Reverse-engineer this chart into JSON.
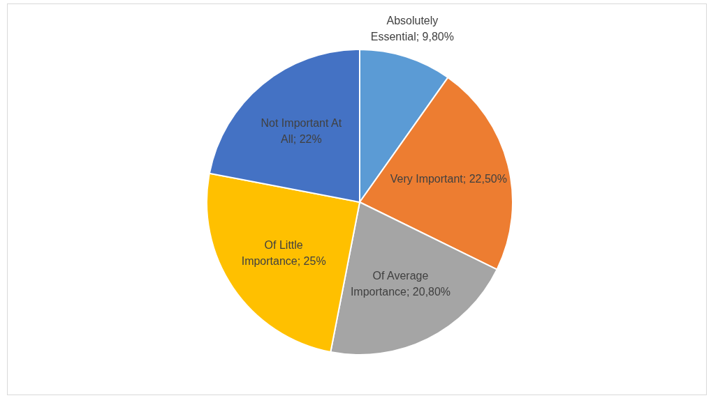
{
  "chart_data": {
    "type": "pie",
    "categories": [
      "Absolutely Essential",
      "Very Important",
      "Of Average Importance",
      "Of Little Importance",
      "Not Important At All"
    ],
    "values": [
      9.8,
      22.5,
      20.8,
      25,
      22
    ],
    "colors": [
      "#5b9bd5",
      "#ed7d31",
      "#a5a5a5",
      "#ffc000",
      "#4472c4"
    ],
    "value_labels": [
      "9,80%",
      "22,50%",
      "20,80%",
      "25%",
      "22%"
    ],
    "legend": false
  }
}
